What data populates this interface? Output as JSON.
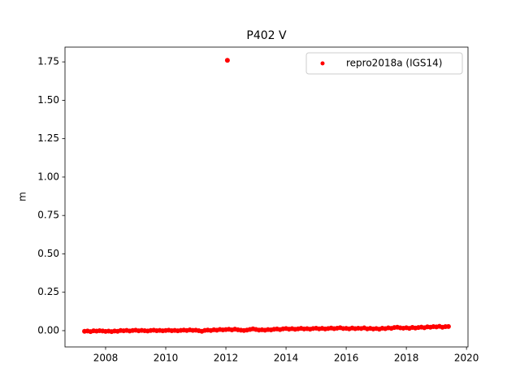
{
  "chart_data": {
    "type": "scatter",
    "title": "P402 V",
    "y_label": "m",
    "series": [
      {
        "name": "repro2018a (IGS14)",
        "color": "#ff0000",
        "x": [
          2007.3,
          2007.4,
          2007.5,
          2007.6,
          2007.7,
          2007.8,
          2007.9,
          2008.0,
          2008.1,
          2008.2,
          2008.3,
          2008.4,
          2008.5,
          2008.6,
          2008.7,
          2008.8,
          2008.9,
          2009.0,
          2009.1,
          2009.2,
          2009.3,
          2009.4,
          2009.5,
          2009.6,
          2009.7,
          2009.8,
          2009.9,
          2010.0,
          2010.1,
          2010.2,
          2010.3,
          2010.4,
          2010.5,
          2010.6,
          2010.7,
          2010.8,
          2010.9,
          2011.0,
          2011.1,
          2011.2,
          2011.3,
          2011.4,
          2011.5,
          2011.6,
          2011.7,
          2011.8,
          2011.9,
          2012.0,
          2012.05,
          2012.1,
          2012.2,
          2012.3,
          2012.4,
          2012.5,
          2012.6,
          2012.7,
          2012.8,
          2012.9,
          2013.0,
          2013.1,
          2013.2,
          2013.3,
          2013.4,
          2013.5,
          2013.6,
          2013.7,
          2013.8,
          2013.9,
          2014.0,
          2014.1,
          2014.2,
          2014.3,
          2014.4,
          2014.5,
          2014.6,
          2014.7,
          2014.8,
          2014.9,
          2015.0,
          2015.1,
          2015.2,
          2015.3,
          2015.4,
          2015.5,
          2015.6,
          2015.7,
          2015.8,
          2015.9,
          2016.0,
          2016.1,
          2016.2,
          2016.3,
          2016.4,
          2016.5,
          2016.6,
          2016.7,
          2016.8,
          2016.9,
          2017.0,
          2017.1,
          2017.2,
          2017.3,
          2017.4,
          2017.5,
          2017.6,
          2017.7,
          2017.8,
          2017.9,
          2018.0,
          2018.1,
          2018.2,
          2018.3,
          2018.4,
          2018.5,
          2018.6,
          2018.7,
          2018.8,
          2018.9,
          2019.0,
          2019.1,
          2019.2,
          2019.3,
          2019.4
        ],
        "values": [
          -0.004,
          -0.002,
          -0.006,
          -0.001,
          -0.003,
          0.0,
          -0.002,
          -0.005,
          -0.003,
          -0.006,
          -0.002,
          -0.004,
          0.001,
          -0.001,
          0.002,
          -0.002,
          0.001,
          0.003,
          -0.001,
          0.002,
          0.0,
          -0.002,
          0.001,
          0.003,
          0.0,
          0.002,
          -0.001,
          0.001,
          0.003,
          0.0,
          0.002,
          -0.001,
          0.002,
          0.004,
          0.001,
          0.005,
          0.002,
          0.003,
          0.0,
          -0.004,
          0.002,
          0.004,
          0.001,
          0.006,
          0.003,
          0.008,
          0.005,
          0.007,
          1.76,
          0.009,
          0.005,
          0.01,
          0.006,
          0.003,
          0.001,
          0.004,
          0.008,
          0.012,
          0.008,
          0.004,
          0.006,
          0.003,
          0.007,
          0.005,
          0.009,
          0.011,
          0.007,
          0.012,
          0.014,
          0.01,
          0.013,
          0.009,
          0.012,
          0.015,
          0.011,
          0.013,
          0.01,
          0.014,
          0.016,
          0.012,
          0.015,
          0.011,
          0.014,
          0.017,
          0.013,
          0.016,
          0.019,
          0.014,
          0.015,
          0.012,
          0.017,
          0.013,
          0.016,
          0.014,
          0.018,
          0.012,
          0.015,
          0.011,
          0.014,
          0.01,
          0.016,
          0.013,
          0.018,
          0.015,
          0.02,
          0.022,
          0.018,
          0.016,
          0.019,
          0.015,
          0.021,
          0.017,
          0.02,
          0.023,
          0.019,
          0.025,
          0.022,
          0.026,
          0.024,
          0.028,
          0.022,
          0.026,
          0.027
        ]
      }
    ],
    "xlim": [
      2006.65,
      2020.05
    ],
    "ylim": [
      -0.106,
      1.846
    ],
    "xticks": [
      2008,
      2010,
      2012,
      2014,
      2016,
      2018,
      2020
    ],
    "yticks": [
      {
        "value": 0,
        "label": "0.00"
      },
      {
        "value": 0.25,
        "label": "0.25"
      },
      {
        "value": 0.5,
        "label": "0.50"
      },
      {
        "value": 0.75,
        "label": "0.75"
      },
      {
        "value": 1,
        "label": "1.00"
      },
      {
        "value": 1.25,
        "label": "1.25"
      },
      {
        "value": 1.5,
        "label": "1.50"
      },
      {
        "value": 1.75,
        "label": "1.75"
      }
    ],
    "legend": "upper right",
    "grid": false
  }
}
